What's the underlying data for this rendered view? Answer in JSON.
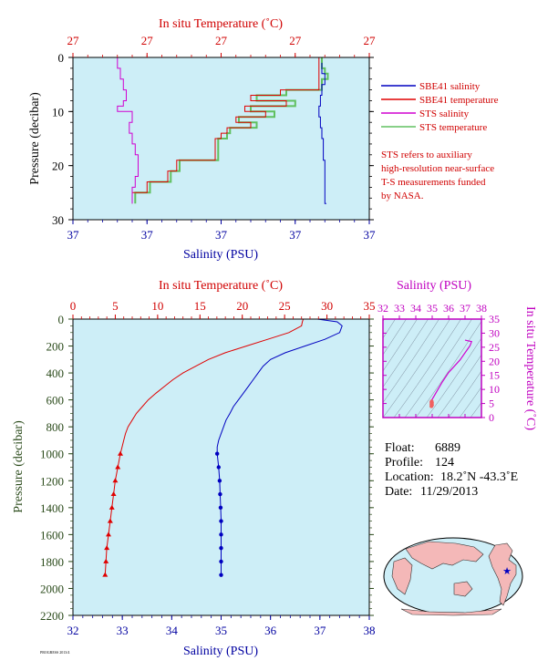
{
  "colors": {
    "salinity": "#0000c0",
    "temperature": "#e00000",
    "sts_salinity": "#d000d0",
    "sts_temperature": "#60c060",
    "plot_bg": "#cdeef7",
    "axis_red": "#d00000",
    "axis_blue": "#0000a0",
    "axis_magenta": "#c000c0",
    "axis_green": "#2a4a1a"
  },
  "top": {
    "x2label": "In situ Temperature (˚C)",
    "xlabel": "Salinity (PSU)",
    "ylabel": "Pressure (decibar)",
    "temp_ticks": [
      "27",
      "27",
      "27",
      "27",
      "27"
    ],
    "sal_ticks": [
      "37",
      "37",
      "37",
      "37",
      "37"
    ],
    "p_ticks": [
      "0",
      "10",
      "20",
      "30"
    ],
    "legend": [
      {
        "label": "SBE41 salinity",
        "color": "#0000c0"
      },
      {
        "label": "SBE41 temperature",
        "color": "#e00000"
      },
      {
        "label": "STS salinity",
        "color": "#d000d0"
      },
      {
        "label": "STS temperature",
        "color": "#60c060"
      }
    ],
    "note": [
      "STS refers to auxiliary",
      "high-resolution near-surface",
      "T-S measurements funded",
      "by NASA."
    ]
  },
  "main": {
    "x2label": "In situ Temperature (˚C)",
    "xlabel": "Salinity (PSU)",
    "ylabel": "Pressure (decibar)",
    "temp_ticks": [
      "0",
      "5",
      "10",
      "15",
      "20",
      "25",
      "30",
      "35"
    ],
    "sal_ticks": [
      "32",
      "33",
      "34",
      "35",
      "36",
      "37",
      "38"
    ],
    "p_ticks": [
      "0",
      "200",
      "400",
      "600",
      "800",
      "1000",
      "1200",
      "1400",
      "1600",
      "1800",
      "2000",
      "2200"
    ]
  },
  "ts": {
    "title": "Salinity (PSU)",
    "ylabel": "In situ Temperature (˚C)",
    "sal_ticks": [
      "32",
      "33",
      "34",
      "35",
      "36",
      "37",
      "38"
    ],
    "temp_ticks": [
      "0",
      "5",
      "10",
      "15",
      "20",
      "25",
      "30",
      "35"
    ]
  },
  "info": {
    "float_label": "Float:",
    "float_value": "6889",
    "profile_label": "Profile:",
    "profile_value": "124",
    "location_label": "Location:",
    "location_value": "18.2˚N  -43.3˚E",
    "date_label": "Date:",
    "date_value": "11/29/2013"
  },
  "footer": "PROGRESS 2013/4",
  "chart_data": [
    {
      "type": "line",
      "title": "",
      "xlabel": "Salinity (PSU)",
      "x2label": "In situ Temperature (˚C)",
      "ylabel": "Pressure (decibar)",
      "ylim": [
        0,
        30
      ],
      "y_reversed": true,
      "grid": false,
      "legend_position": "right",
      "series": [
        {
          "name": "SBE41 salinity",
          "pressure": [
            1,
            3,
            5,
            7,
            9,
            11,
            13,
            15,
            17,
            19,
            21,
            23,
            25,
            27
          ],
          "norm_x": [
            0.84,
            0.85,
            0.84,
            0.835,
            0.83,
            0.835,
            0.84,
            0.845,
            0.845,
            0.85,
            0.85,
            0.85,
            0.85,
            0.855
          ]
        },
        {
          "name": "SBE41 temperature",
          "pressure": [
            0,
            2,
            4,
            6,
            7,
            8,
            9,
            10,
            11,
            12,
            13,
            14,
            15,
            17,
            19,
            21,
            23,
            25,
            27
          ],
          "norm_x": [
            0.83,
            0.83,
            0.83,
            0.7,
            0.6,
            0.72,
            0.58,
            0.65,
            0.55,
            0.6,
            0.52,
            0.5,
            0.48,
            0.48,
            0.35,
            0.32,
            0.25,
            0.2,
            0.2
          ]
        },
        {
          "name": "STS salinity",
          "pressure": [
            0,
            2,
            4,
            6,
            8,
            9,
            10,
            12,
            14,
            16,
            18,
            20,
            22,
            24,
            26,
            27
          ],
          "norm_x": [
            0.15,
            0.16,
            0.17,
            0.18,
            0.17,
            0.15,
            0.2,
            0.19,
            0.2,
            0.21,
            0.22,
            0.22,
            0.21,
            0.2,
            0.2,
            0.2
          ]
        },
        {
          "name": "STS temperature",
          "pressure": [
            0,
            2,
            3,
            4,
            6,
            7,
            8,
            9,
            10,
            11,
            12,
            13,
            14,
            15,
            17,
            19,
            21,
            23,
            25,
            27
          ],
          "norm_x": [
            0.84,
            0.85,
            0.86,
            0.84,
            0.72,
            0.62,
            0.75,
            0.6,
            0.68,
            0.56,
            0.62,
            0.53,
            0.52,
            0.49,
            0.49,
            0.36,
            0.33,
            0.26,
            0.21,
            0.21
          ]
        }
      ]
    },
    {
      "type": "line",
      "title": "",
      "xlabel": "Salinity (PSU)",
      "x2label": "In situ Temperature (˚C)",
      "ylabel": "Pressure (decibar)",
      "xlim_salinity": [
        32,
        38
      ],
      "xlim_temperature": [
        0,
        35
      ],
      "ylim": [
        0,
        2200
      ],
      "y_reversed": true,
      "grid": false,
      "series": [
        {
          "name": "SBE41 temperature",
          "pressure": [
            0,
            20,
            50,
            100,
            150,
            200,
            250,
            300,
            350,
            400,
            450,
            500,
            550,
            600,
            650,
            700,
            750,
            800,
            850,
            900,
            950,
            1000,
            1100,
            1200,
            1300,
            1400,
            1500,
            1600,
            1700,
            1800,
            1900
          ],
          "values": [
            27.2,
            27.1,
            27.0,
            25.5,
            23.0,
            20.5,
            18.0,
            16.0,
            14.5,
            13.0,
            11.8,
            10.8,
            9.8,
            8.9,
            8.2,
            7.5,
            7.0,
            6.5,
            6.2,
            6.0,
            5.8,
            5.6,
            5.3,
            5.0,
            4.8,
            4.6,
            4.4,
            4.2,
            4.0,
            3.9,
            3.8
          ]
        },
        {
          "name": "SBE41 salinity",
          "pressure": [
            0,
            20,
            50,
            100,
            150,
            200,
            250,
            300,
            350,
            400,
            450,
            500,
            550,
            600,
            650,
            700,
            750,
            800,
            850,
            900,
            950,
            1000,
            1100,
            1200,
            1300,
            1400,
            1500,
            1600,
            1700,
            1800,
            1900
          ],
          "values": [
            36.95,
            37.35,
            37.45,
            37.4,
            37.1,
            36.7,
            36.3,
            36.0,
            35.85,
            35.75,
            35.65,
            35.55,
            35.45,
            35.35,
            35.25,
            35.18,
            35.1,
            35.05,
            35.0,
            34.95,
            34.92,
            34.92,
            34.95,
            34.97,
            34.98,
            34.99,
            35.0,
            35.0,
            35.0,
            35.0,
            35.0
          ]
        }
      ]
    },
    {
      "type": "scatter",
      "title": "Salinity (PSU)",
      "xlabel": "Salinity (PSU)",
      "ylabel": "In situ Temperature (˚C)",
      "xlim": [
        32,
        38
      ],
      "ylim": [
        0,
        35
      ],
      "series": [
        {
          "name": "T-S profile",
          "salinity": [
            37.0,
            37.4,
            37.3,
            36.7,
            36.0,
            35.6,
            35.3,
            35.1,
            34.95,
            34.93,
            34.95,
            35.0
          ],
          "temperature": [
            27.5,
            27.0,
            25.5,
            20.5,
            16.0,
            12.5,
            9.5,
            7.5,
            6.0,
            5.5,
            5.0,
            4.0
          ]
        }
      ]
    }
  ]
}
